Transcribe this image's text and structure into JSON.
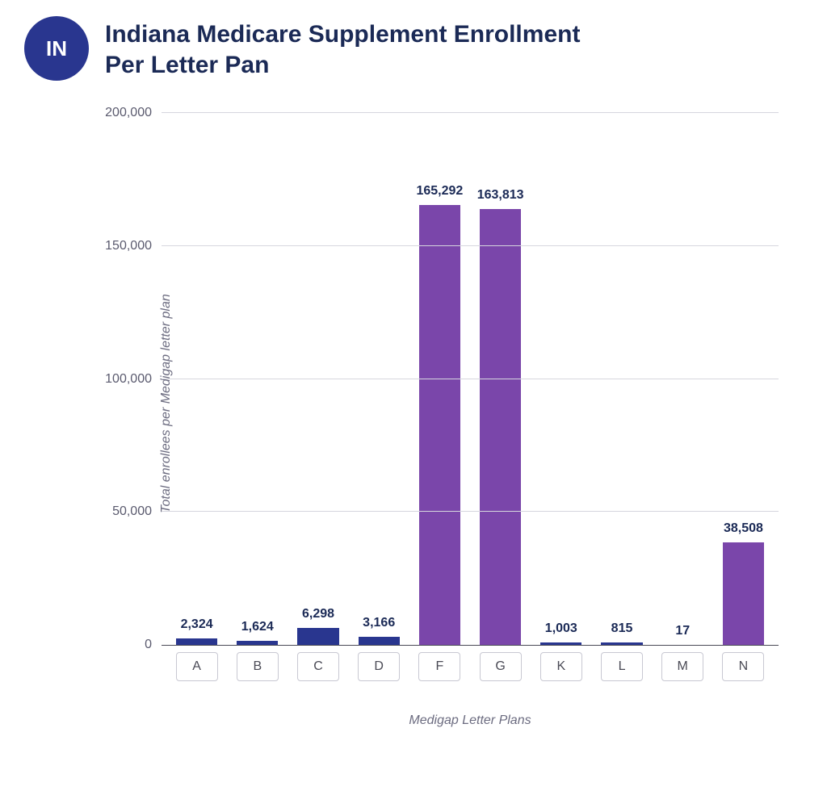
{
  "header": {
    "badge_text": "IN",
    "badge_bg": "#29368f",
    "badge_fg": "#ffffff",
    "title_line1": "Indiana Medicare Supplement Enrollment",
    "title_line2": "Per Letter Pan",
    "title_color": "#1b2a56"
  },
  "chart": {
    "type": "bar",
    "ylabel": "Total enrollees per Medigap letter plan",
    "xlabel": "Medigap Letter Plans",
    "axis_label_color": "#6c6c80",
    "ylim": [
      0,
      200000
    ],
    "yticks": [
      0,
      50000,
      100000,
      150000,
      200000
    ],
    "ytick_labels": [
      "0",
      "50,000",
      "100,000",
      "150,000",
      "200,000"
    ],
    "tick_text_color": "#5a5a6e",
    "grid_color": "#d6d6de",
    "baseline_color": "#4a4a55",
    "xtick_border_color": "#c8c8d2",
    "xtick_text_color": "#4a4a55",
    "value_label_color": "#1b2a56",
    "bar_width": 0.68,
    "background_color": "#ffffff",
    "categories": [
      "A",
      "B",
      "C",
      "D",
      "F",
      "G",
      "K",
      "L",
      "M",
      "N"
    ],
    "values": [
      2324,
      1624,
      6298,
      3166,
      165292,
      163813,
      1003,
      815,
      17,
      38508
    ],
    "value_labels": [
      "2,324",
      "1,624",
      "6,298",
      "3,166",
      "165,292",
      "163,813",
      "1,003",
      "815",
      "17",
      "38,508"
    ],
    "bar_colors": [
      "#29368f",
      "#29368f",
      "#29368f",
      "#29368f",
      "#7a46aa",
      "#7a46aa",
      "#29368f",
      "#29368f",
      "#29368f",
      "#7a46aa"
    ],
    "title_fontsize": 30,
    "label_fontsize": 16,
    "tick_fontsize": 16,
    "value_fontsize": 16
  }
}
